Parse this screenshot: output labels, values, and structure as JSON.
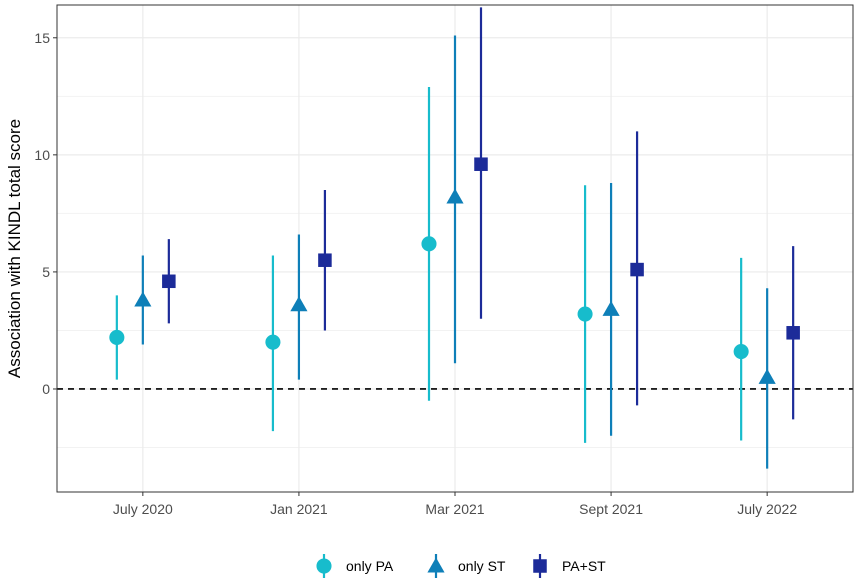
{
  "chart_data": {
    "type": "scatter",
    "subtype": "pointrange",
    "title": "",
    "xlabel": "",
    "ylabel": "Association with KINDL total score",
    "ylim": [
      -4.4,
      16.4
    ],
    "yticks": [
      0,
      5,
      10,
      15
    ],
    "grid": true,
    "reference_line": {
      "y": 0,
      "style": "dashed"
    },
    "legend_position": "bottom",
    "categories": [
      "July 2020",
      "Jan 2021",
      "Mar 2021",
      "Sept 2021",
      "July 2022"
    ],
    "series": [
      {
        "name": "only PA",
        "color": "#17bccc",
        "marker": "circle",
        "values": [
          2.2,
          2.0,
          6.2,
          3.2,
          1.6
        ],
        "lower": [
          0.4,
          -1.8,
          -0.5,
          -2.3,
          -2.2
        ],
        "upper": [
          4.0,
          5.7,
          12.9,
          8.7,
          5.6
        ]
      },
      {
        "name": "only ST",
        "color": "#0e7fb8",
        "marker": "triangle",
        "values": [
          3.8,
          3.6,
          8.2,
          3.4,
          0.5
        ],
        "lower": [
          1.9,
          0.4,
          1.1,
          -2.0,
          -3.4
        ],
        "upper": [
          5.7,
          6.6,
          15.1,
          8.8,
          4.3
        ]
      },
      {
        "name": "PA+ST",
        "color": "#1c2b99",
        "marker": "square",
        "values": [
          4.6,
          5.5,
          9.6,
          5.1,
          2.4
        ],
        "lower": [
          2.8,
          2.5,
          3.0,
          -0.7,
          -1.3
        ],
        "upper": [
          6.4,
          8.5,
          16.3,
          11.0,
          6.1
        ]
      }
    ]
  }
}
